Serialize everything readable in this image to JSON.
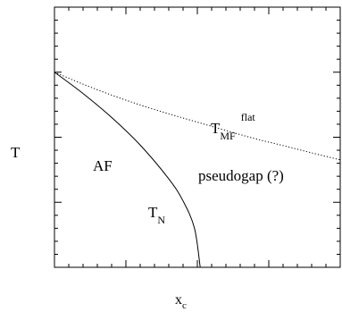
{
  "chart_data": {
    "type": "line",
    "title": "",
    "xlabel": "x",
    "xlabel_sub": "c",
    "ylabel": "T",
    "xlim": [
      0,
      1
    ],
    "ylim": [
      0,
      1
    ],
    "x_ticks_labeled": false,
    "y_ticks_labeled": false,
    "grid": false,
    "series": [
      {
        "name": "T_N",
        "style": "solid",
        "color": "#000000",
        "x": [
          0.0,
          0.1,
          0.2,
          0.3,
          0.4,
          0.45,
          0.49,
          0.51
        ],
        "y": [
          0.75,
          0.668,
          0.576,
          0.47,
          0.34,
          0.255,
          0.15,
          0.0
        ]
      },
      {
        "name": "T_MF^flat",
        "style": "dotted",
        "color": "#000000",
        "x": [
          0.0,
          0.1,
          0.2,
          0.3,
          0.4,
          0.5,
          0.6,
          0.7,
          0.8,
          0.9,
          1.0
        ],
        "y": [
          0.75,
          0.704,
          0.662,
          0.624,
          0.59,
          0.558,
          0.526,
          0.495,
          0.468,
          0.44,
          0.413
        ]
      }
    ],
    "annotations": {
      "af": "AF",
      "pseudogap": "pseudogap (?)",
      "tn_main": "T",
      "tn_sub": "N",
      "tmf_main": "T",
      "tmf_sub": "MF",
      "tmf_sup": "flat"
    }
  }
}
